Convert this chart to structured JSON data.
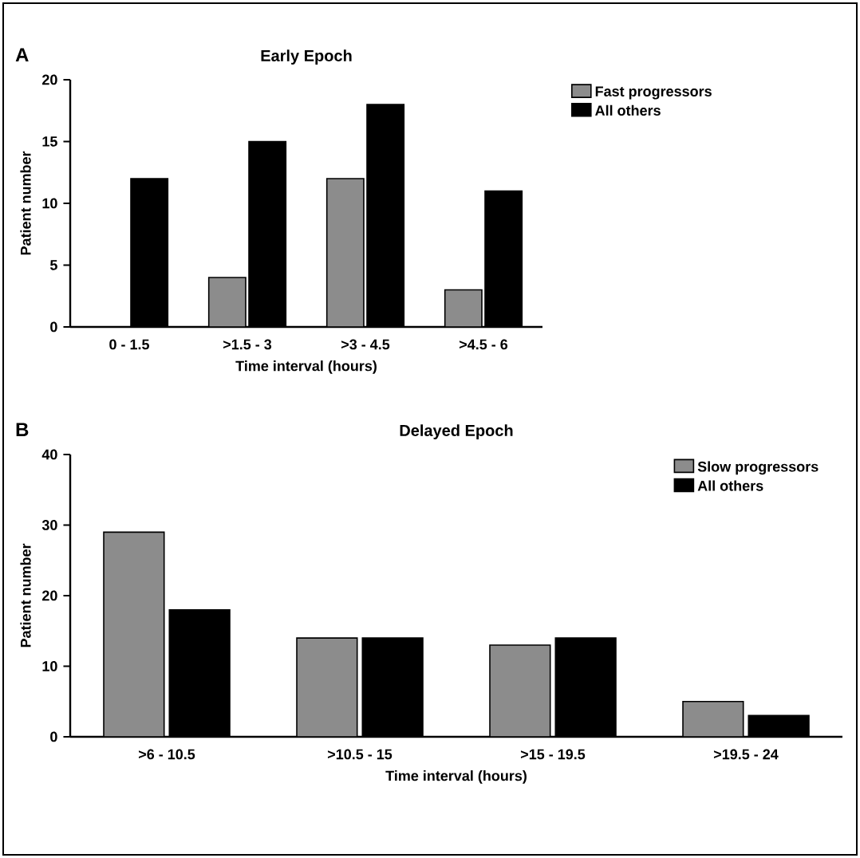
{
  "chart_data": [
    {
      "type": "bar",
      "title": "Early Epoch",
      "xlabel": "Time interval (hours)",
      "ylabel": "Patient number",
      "annotations": [
        "A"
      ],
      "categories": [
        "0 - 1.5",
        ">1.5 - 3",
        ">3 - 4.5",
        ">4.5 - 6"
      ],
      "series": [
        {
          "name": "Fast progressors",
          "color": "#8c8c8c",
          "values": [
            0,
            4,
            12,
            3
          ]
        },
        {
          "name": "All others",
          "color": "#000000",
          "values": [
            12,
            15,
            18,
            11
          ]
        }
      ],
      "ylim": [
        0,
        20
      ],
      "yticks": [
        0,
        5,
        10,
        15,
        20
      ],
      "legend": "top right"
    },
    {
      "type": "bar",
      "title": "Delayed Epoch",
      "xlabel": "Time interval (hours)",
      "ylabel": "Patient number",
      "annotations": [
        "B"
      ],
      "categories": [
        ">6 - 10.5",
        ">10.5 - 15",
        ">15 - 19.5",
        ">19.5 - 24"
      ],
      "series": [
        {
          "name": "Slow progressors",
          "color": "#8c8c8c",
          "values": [
            29,
            14,
            13,
            5
          ]
        },
        {
          "name": "All others",
          "color": "#000000",
          "values": [
            18,
            14,
            14,
            3
          ]
        }
      ],
      "ylim": [
        0,
        40
      ],
      "yticks": [
        0,
        10,
        20,
        30,
        40
      ],
      "legend": "top right"
    }
  ]
}
